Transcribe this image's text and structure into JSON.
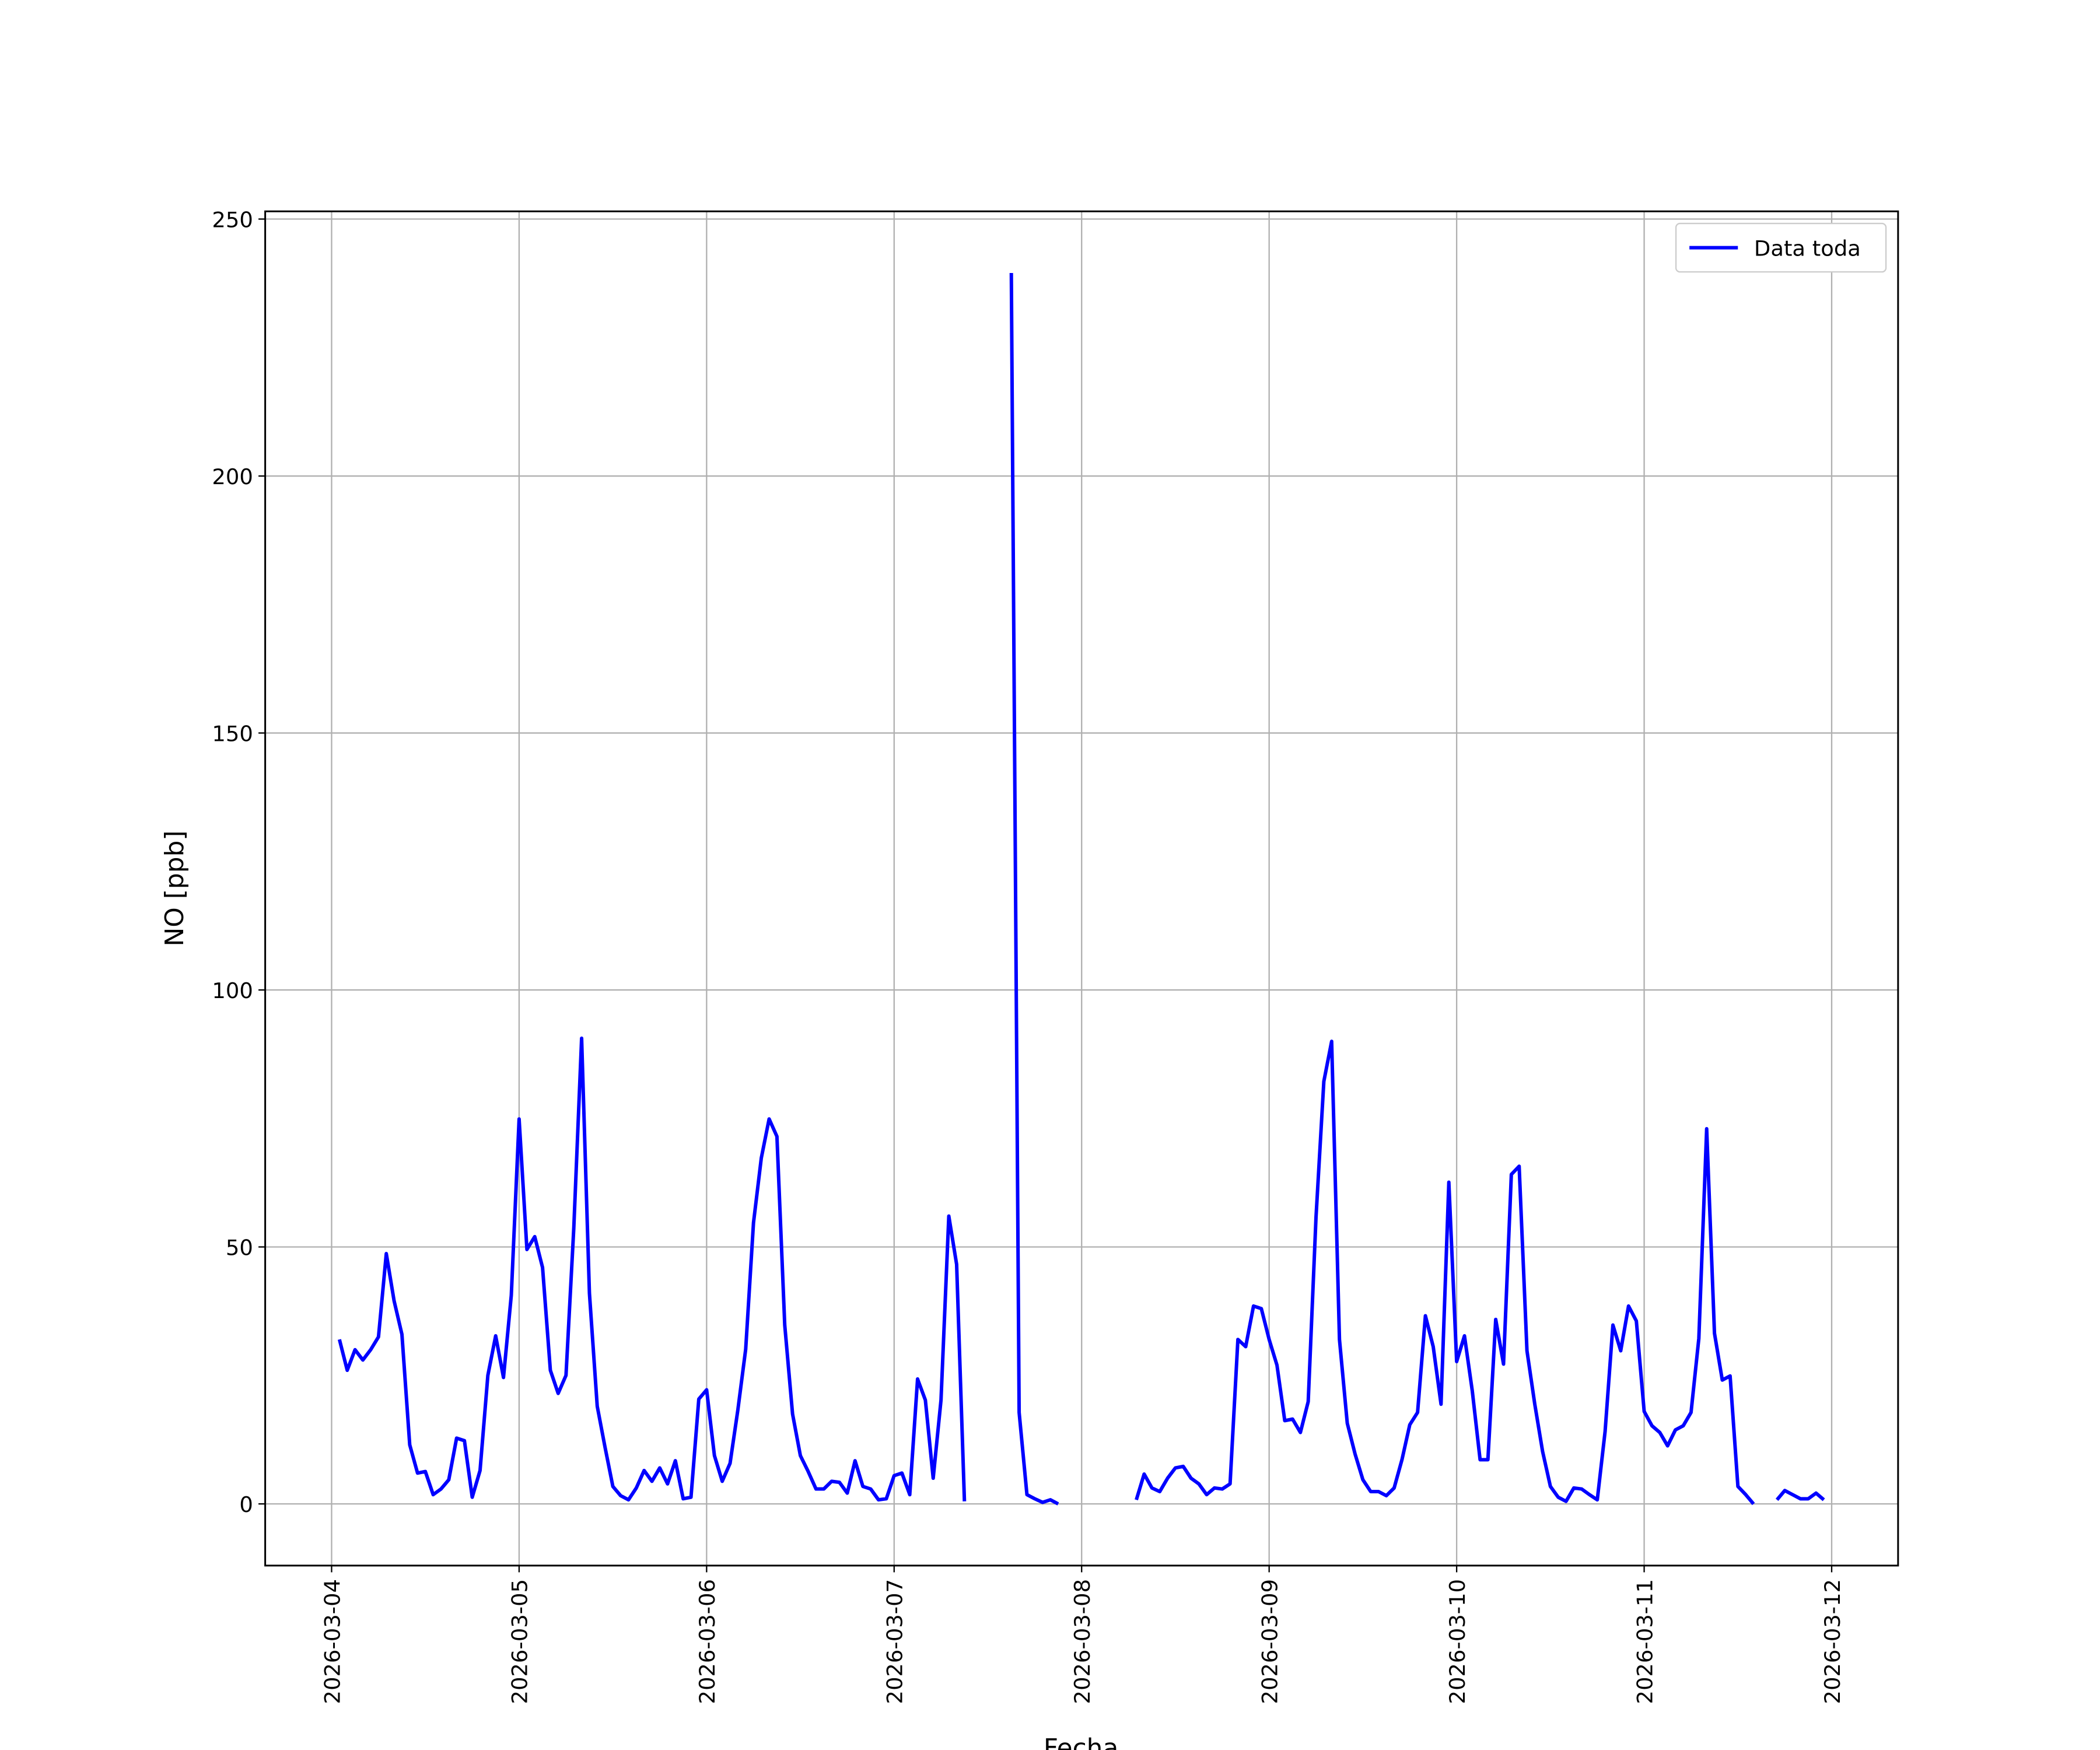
{
  "chart_data": {
    "type": "line",
    "x_label": "Fecha",
    "y_label": "NO [ppb]",
    "x": [
      1,
      2,
      3,
      4,
      5,
      6,
      7,
      8,
      9,
      10,
      11,
      12,
      13,
      14,
      15,
      16,
      17,
      18,
      19,
      20,
      21,
      22,
      23,
      24,
      25,
      26,
      27,
      28,
      29,
      30,
      31,
      32,
      33,
      34,
      35,
      36,
      37,
      38,
      39,
      40,
      41,
      42,
      43,
      44,
      45,
      46,
      47,
      48,
      49,
      50,
      51,
      52,
      53,
      54,
      55,
      56,
      57,
      58,
      59,
      60,
      61,
      62,
      63,
      64,
      65,
      66,
      67,
      68,
      69,
      70,
      71,
      72,
      73,
      74,
      75,
      76,
      77,
      78,
      79,
      80,
      81,
      82,
      83,
      84,
      85,
      86,
      87,
      88,
      89,
      90,
      91,
      92,
      93,
      94,
      95,
      96,
      97,
      98,
      99,
      100,
      101,
      102,
      103,
      104,
      105,
      106,
      107,
      108,
      109,
      110,
      111,
      112,
      113,
      114,
      115,
      116,
      117,
      118,
      119,
      120,
      121,
      122,
      123,
      124,
      125,
      126,
      127,
      128,
      129,
      130,
      131,
      132,
      133,
      134,
      135,
      136,
      137,
      138,
      139,
      140,
      141,
      142,
      143,
      144,
      145,
      146,
      147,
      148,
      149,
      150,
      151,
      152,
      153,
      154,
      155,
      156,
      157,
      158,
      159,
      160,
      161,
      162,
      163,
      164,
      165,
      166,
      167,
      168,
      169,
      170,
      171,
      172,
      173,
      174,
      175,
      176,
      177,
      178,
      179,
      180,
      181,
      182,
      183,
      184,
      185,
      186,
      187,
      188,
      189,
      190,
      191
    ],
    "series": [
      {
        "name": "Data toda",
        "color": "#0000ff",
        "values": [
          32,
          26,
          30,
          28,
          30,
          32.5,
          48.7,
          39.5,
          33,
          11.5,
          6,
          6.3,
          1.8,
          2.9,
          4.7,
          12.8,
          12.3,
          1.3,
          6.5,
          25,
          32.7,
          24.6,
          40.6,
          74.9,
          49.5,
          52,
          46,
          26,
          21.5,
          25,
          53.7,
          90.6,
          41,
          19,
          11,
          3.4,
          1.6,
          0.8,
          3.1,
          6.5,
          4.4,
          7,
          3.9,
          8.4,
          1,
          1.3,
          20.4,
          22.2,
          9.4,
          4.4,
          7.9,
          18.3,
          30.1,
          54.7,
          67.3,
          74.9,
          71.5,
          34.8,
          17.5,
          9.4,
          6.3,
          2.9,
          2.9,
          4.4,
          4.2,
          2.1,
          8.4,
          3.4,
          2.9,
          0.8,
          1,
          5.5,
          6,
          1.8,
          24.3,
          20.2,
          5,
          20.2,
          56,
          46.6,
          0.5,
          null,
          null,
          null,
          null,
          null,
          239.5,
          17.8,
          1.8,
          1,
          0.3,
          0.8,
          0,
          null,
          null,
          null,
          null,
          null,
          null,
          null,
          null,
          null,
          0.8,
          5.8,
          3.1,
          2.4,
          5,
          7,
          7.3,
          5,
          3.9,
          1.8,
          3.1,
          2.9,
          3.9,
          32,
          30.6,
          38.5,
          38,
          32,
          27,
          16.2,
          16.5,
          13.9,
          19.9,
          55.8,
          82.2,
          90,
          32,
          15.7,
          9.7,
          4.7,
          2.4,
          2.4,
          1.6,
          3.1,
          8.6,
          15.4,
          17.8,
          36.6,
          30.6,
          19.4,
          62.6,
          27.7,
          32.7,
          22,
          8.6,
          8.6,
          35.9,
          27.2,
          64.1,
          65.7,
          29.8,
          19.4,
          10.2,
          3.4,
          1.3,
          0.5,
          3.1,
          2.9,
          1.8,
          0.8,
          14.1,
          34.8,
          29.8,
          38.5,
          35.6,
          18,
          15.2,
          13.9,
          11.3,
          14.4,
          15.2,
          17.8,
          32.2,
          73,
          33.2,
          24.1,
          24.9,
          3.4,
          1.8,
          0,
          null,
          null,
          0.8,
          2.6,
          1.8,
          1,
          1,
          2.1,
          0.8
        ]
      }
    ],
    "xlim": [
      -8.5,
      200.5
    ],
    "xticks": [
      {
        "value": 0,
        "label": "2026-03-04"
      },
      {
        "value": 24,
        "label": "2026-03-05"
      },
      {
        "value": 48,
        "label": "2026-03-06"
      },
      {
        "value": 72,
        "label": "2026-03-07"
      },
      {
        "value": 96,
        "label": "2026-03-08"
      },
      {
        "value": 120,
        "label": "2026-03-09"
      },
      {
        "value": 144,
        "label": "2026-03-10"
      },
      {
        "value": 168,
        "label": "2026-03-11"
      },
      {
        "value": 192,
        "label": "2026-03-12"
      }
    ],
    "ylim": [
      -12,
      251.5
    ],
    "yticks": [
      0,
      50,
      100,
      150,
      200,
      250
    ],
    "grid": true,
    "legend": "upper right"
  }
}
